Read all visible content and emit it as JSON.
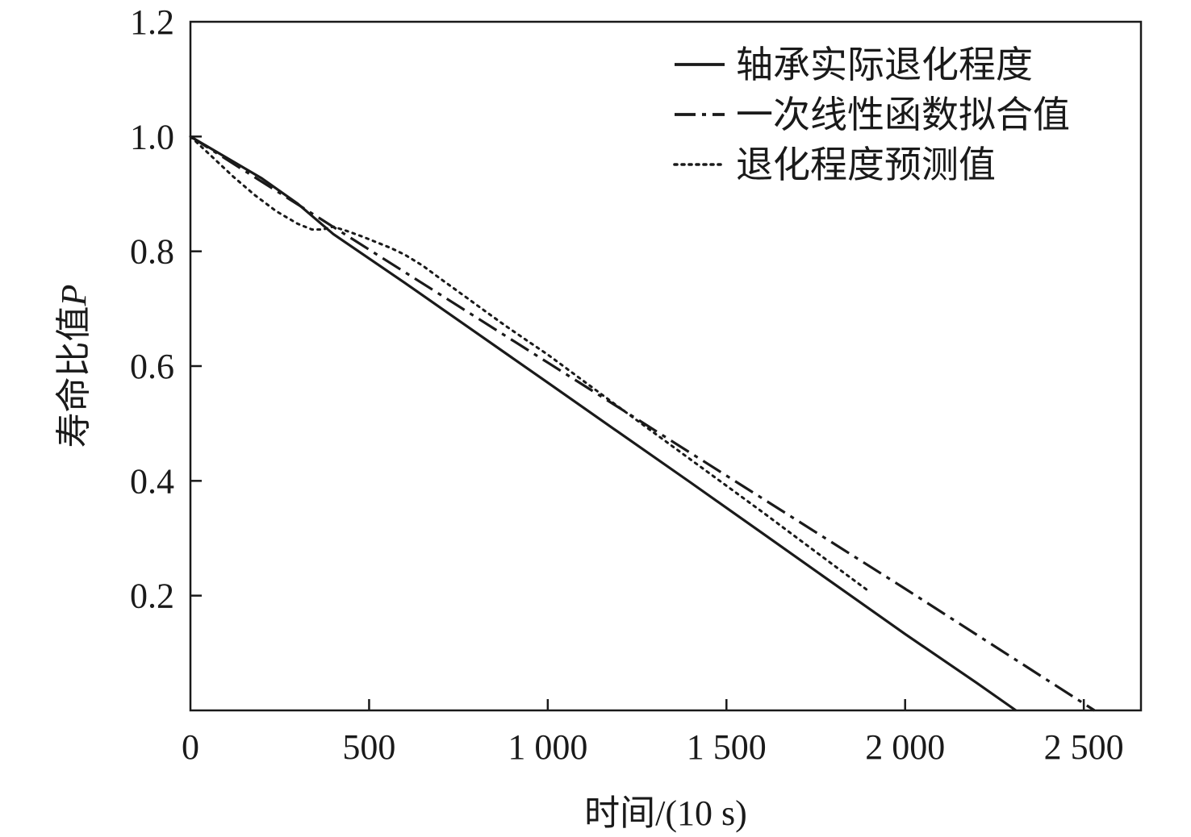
{
  "chart_data": {
    "type": "line",
    "title": "",
    "xlabel": "时间/(10 s)",
    "ylabel": "寿命比值",
    "ylabel_var": "P",
    "xlim": [
      0,
      2660
    ],
    "ylim": [
      0,
      1.2
    ],
    "x_ticks": [
      0,
      500,
      1000,
      1500,
      2000,
      2500
    ],
    "x_tick_labels": [
      "0",
      "500",
      "1 000",
      "1 500",
      "2 000",
      "2 500"
    ],
    "y_ticks": [
      0.2,
      0.4,
      0.6,
      0.8,
      1.0,
      1.2
    ],
    "y_tick_labels": [
      "0.2",
      "0.4",
      "0.6",
      "0.8",
      "1.0",
      "1.2"
    ],
    "grid": false,
    "legend_position": "top-right",
    "series": [
      {
        "name": "轴承实际退化程度",
        "style": "solid",
        "color": "#1a1a1a",
        "x": [
          0,
          200,
          300,
          400,
          600,
          800,
          1000,
          1200,
          1400,
          1600,
          1800,
          2000,
          2200,
          2310
        ],
        "y": [
          1.0,
          0.927,
          0.883,
          0.83,
          0.745,
          0.658,
          0.571,
          0.484,
          0.397,
          0.309,
          0.221,
          0.133,
          0.048,
          0.0
        ]
      },
      {
        "name": "一次线性函数拟合值",
        "style": "dashdot",
        "color": "#1a1a1a",
        "x": [
          0,
          500,
          1000,
          1500,
          2000,
          2530
        ],
        "y": [
          1.0,
          0.803,
          0.606,
          0.409,
          0.212,
          0.0
        ]
      },
      {
        "name": "退化程度预测值",
        "style": "dotted",
        "color": "#1a1a1a",
        "x": [
          0,
          60,
          120,
          180,
          240,
          300,
          340,
          370,
          400,
          440,
          480,
          520,
          560,
          600,
          650,
          700,
          760,
          820,
          880,
          950,
          1000,
          1200,
          1400,
          1600,
          1800,
          1900
        ],
        "y": [
          1.0,
          0.965,
          0.93,
          0.898,
          0.87,
          0.848,
          0.838,
          0.838,
          0.843,
          0.835,
          0.826,
          0.816,
          0.806,
          0.794,
          0.775,
          0.752,
          0.725,
          0.698,
          0.671,
          0.641,
          0.62,
          0.528,
          0.437,
          0.346,
          0.253,
          0.207
        ]
      }
    ]
  }
}
